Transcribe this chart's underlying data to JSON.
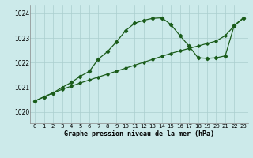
{
  "title": "Graphe pression niveau de la mer (hPa)",
  "bg_color": "#cceaea",
  "grid_color": "#aacece",
  "line_color": "#1a5c1a",
  "xlim": [
    -0.5,
    23.5
  ],
  "ylim": [
    1019.55,
    1024.35
  ],
  "yticks": [
    1020,
    1021,
    1022,
    1023,
    1024
  ],
  "xticks": [
    0,
    1,
    2,
    3,
    4,
    5,
    6,
    7,
    8,
    9,
    10,
    11,
    12,
    13,
    14,
    15,
    16,
    17,
    18,
    19,
    20,
    21,
    22,
    23
  ],
  "series1_x": [
    0,
    1,
    2,
    3,
    4,
    5,
    6,
    7,
    8,
    9,
    10,
    11,
    12,
    13,
    14,
    15,
    16,
    17,
    18,
    19,
    20,
    21,
    22,
    23
  ],
  "series1_y": [
    1020.45,
    1020.62,
    1020.78,
    1020.92,
    1021.05,
    1021.18,
    1021.3,
    1021.42,
    1021.54,
    1021.66,
    1021.78,
    1021.9,
    1022.02,
    1022.14,
    1022.26,
    1022.38,
    1022.48,
    1022.58,
    1022.68,
    1022.78,
    1022.88,
    1023.1,
    1023.5,
    1023.8
  ],
  "series2_x": [
    0,
    1,
    2,
    3,
    4,
    5,
    6,
    7,
    8,
    9,
    10,
    11,
    12,
    13,
    14,
    15,
    16,
    17,
    18,
    19,
    20,
    21,
    22,
    23
  ],
  "series2_y": [
    1020.45,
    1020.62,
    1020.78,
    1021.0,
    1021.2,
    1021.45,
    1021.65,
    1022.15,
    1022.45,
    1022.85,
    1023.3,
    1023.6,
    1023.72,
    1023.8,
    1023.82,
    1023.55,
    1023.1,
    1022.68,
    1022.2,
    1022.18,
    1022.2,
    1022.28,
    1023.52,
    1023.82
  ]
}
